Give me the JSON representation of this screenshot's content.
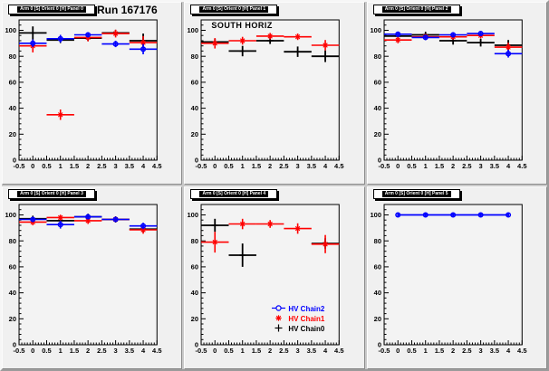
{
  "canvas": {
    "background": "#c9c9c9",
    "pad_background": "#f0f0f0",
    "frame_background": "#f3f3f3",
    "axis_color": "#000000"
  },
  "legend": {
    "entries": [
      {
        "label": "HV Chain2",
        "color": "#0000ff",
        "marker": "circle"
      },
      {
        "label": "HV Chain1",
        "color": "#ff0000",
        "marker": "star"
      },
      {
        "label": "HV Chain0",
        "color": "#000000",
        "marker": "plus"
      }
    ]
  },
  "chart_data": [
    {
      "type": "scatter",
      "header": "Arm 0 [S] Orient 0 [H] Panel 0",
      "title": "Run 167176",
      "x": [
        0,
        1,
        2,
        3,
        4
      ],
      "xlim": [
        -0.5,
        4.5
      ],
      "ylim": [
        0,
        108
      ],
      "xticks": [
        -0.5,
        0,
        0.5,
        1,
        1.5,
        2,
        2.5,
        3,
        3.5,
        4,
        4.5
      ],
      "yticks": [
        0,
        20,
        40,
        60,
        80,
        100
      ],
      "xtick_major": 0.5,
      "xtick_minor": 0.1,
      "ytick_major": 20,
      "ytick_minor": 4,
      "series": [
        {
          "name": "HV Chain0",
          "color": "#000000",
          "marker": "plus",
          "bin_half_width": 0.5,
          "lw": 1.8,
          "values": [
            98,
            92.5,
            94,
            98,
            92
          ],
          "errors": [
            5,
            2,
            2,
            2,
            5.5
          ]
        },
        {
          "name": "HV Chain1",
          "color": "#ff0000",
          "marker": "star",
          "bin_half_width": 0.5,
          "lw": 1.6,
          "values": [
            88,
            35,
            94.5,
            97.5,
            90.5
          ],
          "errors": [
            5,
            4,
            3,
            3,
            5
          ]
        },
        {
          "name": "HV Chain2",
          "color": "#0000ff",
          "marker": "circle",
          "bin_half_width": 0.5,
          "lw": 1.6,
          "values": [
            90,
            93.5,
            96.5,
            89.5,
            85.5
          ],
          "errors": [
            3,
            3,
            2,
            2.5,
            4
          ]
        }
      ]
    },
    {
      "type": "scatter",
      "header": "Arm 0 [S] Orient 0 [H] Panel 1",
      "inner_label": "SOUTH HORIZ",
      "x": [
        0,
        1,
        2,
        3,
        4
      ],
      "xlim": [
        -0.5,
        4.5
      ],
      "ylim": [
        0,
        108
      ],
      "xticks": [
        -0.5,
        0,
        0.5,
        1,
        1.5,
        2,
        2.5,
        3,
        3.5,
        4,
        4.5
      ],
      "yticks": [
        0,
        20,
        40,
        60,
        80,
        100
      ],
      "xtick_major": 0.5,
      "xtick_minor": 0.1,
      "ytick_major": 20,
      "ytick_minor": 4,
      "series": [
        {
          "name": "HV Chain0",
          "color": "#000000",
          "marker": "plus",
          "bin_half_width": 0.5,
          "lw": 1.8,
          "values": [
            91,
            84,
            92,
            83.5,
            80
          ],
          "errors": [
            2.5,
            4,
            2.5,
            4,
            4.5
          ]
        },
        {
          "name": "HV Chain1",
          "color": "#ff0000",
          "marker": "star",
          "bin_half_width": 0.5,
          "lw": 1.6,
          "values": [
            90,
            92,
            95.5,
            95,
            88.5
          ],
          "errors": [
            4,
            3,
            2.5,
            2.5,
            4
          ]
        }
      ]
    },
    {
      "type": "scatter",
      "header": "Arm 0 [S] Orient 0 [H] Panel 2",
      "x": [
        0,
        1,
        2,
        3,
        4
      ],
      "xlim": [
        -0.5,
        4.5
      ],
      "ylim": [
        0,
        108
      ],
      "xticks": [
        -0.5,
        0,
        0.5,
        1,
        1.5,
        2,
        2.5,
        3,
        3.5,
        4,
        4.5
      ],
      "yticks": [
        0,
        20,
        40,
        60,
        80,
        100
      ],
      "xtick_major": 0.5,
      "xtick_minor": 0.1,
      "ytick_major": 20,
      "ytick_minor": 4,
      "series": [
        {
          "name": "HV Chain0",
          "color": "#000000",
          "marker": "plus",
          "bin_half_width": 0.5,
          "lw": 1.8,
          "values": [
            95.5,
            96.5,
            92,
            90.5,
            88.5
          ],
          "errors": [
            2.5,
            2,
            3,
            3,
            4
          ]
        },
        {
          "name": "HV Chain1",
          "color": "#ff0000",
          "marker": "star",
          "bin_half_width": 0.5,
          "lw": 1.6,
          "values": [
            92.5,
            95,
            95,
            96,
            87
          ],
          "errors": [
            2.5,
            2,
            2,
            2,
            3.5
          ]
        },
        {
          "name": "HV Chain2",
          "color": "#0000ff",
          "marker": "circle",
          "bin_half_width": 0.5,
          "lw": 1.6,
          "values": [
            97,
            94.5,
            96.5,
            97.5,
            82
          ],
          "errors": [
            2,
            2,
            2,
            2,
            3
          ]
        }
      ]
    },
    {
      "type": "scatter",
      "header": "Arm 0 [S] Orient 0 [H] Panel 3",
      "x": [
        0,
        1,
        2,
        3,
        4
      ],
      "xlim": [
        -0.5,
        4.5
      ],
      "ylim": [
        0,
        108
      ],
      "xticks": [
        -0.5,
        0,
        0.5,
        1,
        1.5,
        2,
        2.5,
        3,
        3.5,
        4,
        4.5
      ],
      "yticks": [
        0,
        20,
        40,
        60,
        80,
        100
      ],
      "xtick_major": 0.5,
      "xtick_minor": 0.1,
      "ytick_major": 20,
      "ytick_minor": 4,
      "series": [
        {
          "name": "HV Chain0",
          "color": "#000000",
          "marker": "plus",
          "bin_half_width": 0.5,
          "lw": 1.8,
          "values": [
            97,
            95.5,
            98.5,
            96.5,
            89
          ],
          "errors": [
            2,
            2,
            1.5,
            2,
            2
          ]
        },
        {
          "name": "HV Chain1",
          "color": "#ff0000",
          "marker": "star",
          "bin_half_width": 0.5,
          "lw": 1.6,
          "values": [
            94.5,
            98,
            95.5,
            96.5,
            88.5
          ],
          "errors": [
            2.5,
            2,
            2.5,
            2,
            3
          ]
        },
        {
          "name": "HV Chain2",
          "color": "#0000ff",
          "marker": "circle",
          "bin_half_width": 0.5,
          "lw": 1.6,
          "values": [
            96.5,
            92.5,
            98.5,
            96.5,
            91.5
          ],
          "errors": [
            2,
            3,
            2,
            2,
            2.5
          ]
        }
      ]
    },
    {
      "type": "scatter",
      "header": "Arm 0 [S] Orient 0 [H] Panel 4",
      "has_legend": true,
      "x": [
        0,
        1,
        2,
        3,
        4
      ],
      "xlim": [
        -0.5,
        4.5
      ],
      "ylim": [
        0,
        108
      ],
      "xticks": [
        -0.5,
        0,
        0.5,
        1,
        1.5,
        2,
        2.5,
        3,
        3.5,
        4,
        4.5
      ],
      "yticks": [
        0,
        20,
        40,
        60,
        80,
        100
      ],
      "xtick_major": 0.5,
      "xtick_minor": 0.1,
      "ytick_major": 20,
      "ytick_minor": 4,
      "series": [
        {
          "name": "HV Chain0",
          "color": "#000000",
          "marker": "plus",
          "bin_half_width": 0.5,
          "lw": 1.8,
          "values": [
            92,
            69,
            null,
            null,
            78
          ],
          "errors": [
            5,
            9,
            null,
            null,
            4
          ]
        },
        {
          "name": "HV Chain1",
          "color": "#ff0000",
          "marker": "star",
          "bin_half_width": 0.5,
          "lw": 1.6,
          "values": [
            79,
            93,
            93,
            89.5,
            77.5
          ],
          "errors": [
            8,
            4,
            3,
            4,
            7
          ]
        }
      ]
    },
    {
      "type": "line",
      "header": "Arm 0 [S] Orient 0 [H] Panel 5",
      "x": [
        0,
        1,
        2,
        3,
        4
      ],
      "xlim": [
        -0.5,
        4.5
      ],
      "ylim": [
        0,
        108
      ],
      "xticks": [
        -0.5,
        0,
        0.5,
        1,
        1.5,
        2,
        2.5,
        3,
        3.5,
        4,
        4.5
      ],
      "yticks": [
        0,
        20,
        40,
        60,
        80,
        100
      ],
      "xtick_major": 0.5,
      "xtick_minor": 0.1,
      "ytick_major": 20,
      "ytick_minor": 4,
      "series": [
        {
          "name": "HV Chain2",
          "color": "#0000ff",
          "marker": "circle",
          "bin_half_width": 0,
          "lw": 1.8,
          "connect": true,
          "values": [
            100,
            100,
            100,
            100,
            100
          ],
          "errors": [
            1.2,
            1.2,
            1.2,
            1.2,
            1.2
          ]
        }
      ]
    }
  ]
}
